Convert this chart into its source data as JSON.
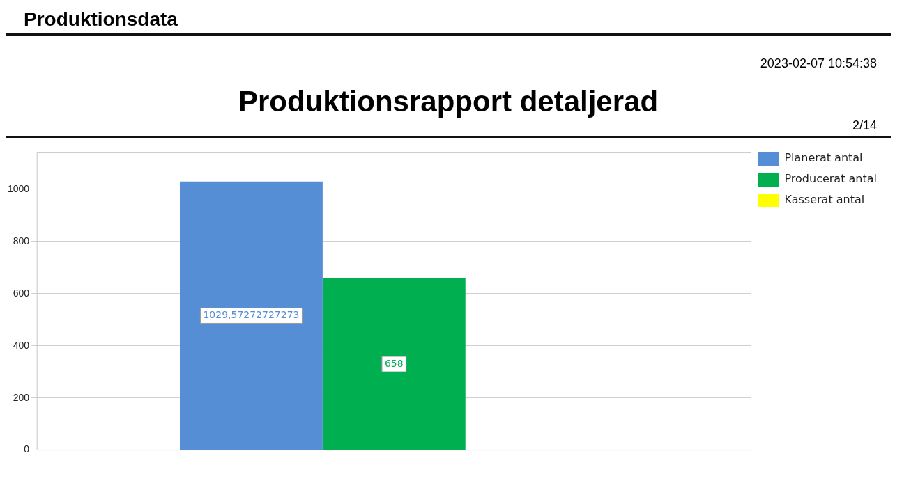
{
  "chart_data": {
    "type": "bar",
    "title": "Produktionsrapport detaljerad",
    "annotations": [
      "Produktionsdata",
      "2023-02-07 10:54:38",
      "2/14"
    ],
    "categories": [
      null
    ],
    "series": [
      {
        "name": "Planerat antal",
        "color": "#558ed5",
        "values": [
          1029.57272727273
        ],
        "value_labels": [
          "1029,57272727273"
        ]
      },
      {
        "name": "Producerat antal",
        "color": "#00b050",
        "values": [
          658
        ],
        "value_labels": [
          "658"
        ]
      },
      {
        "name": "Kasserat antal",
        "color": "#ffff00",
        "values": [
          0
        ],
        "value_labels": [
          null
        ]
      }
    ],
    "ylim": [
      0,
      1140
    ],
    "yticks": [
      0,
      200,
      400,
      600,
      800,
      1000
    ],
    "grid": "y",
    "legend": "right",
    "tick_labels": "y"
  }
}
